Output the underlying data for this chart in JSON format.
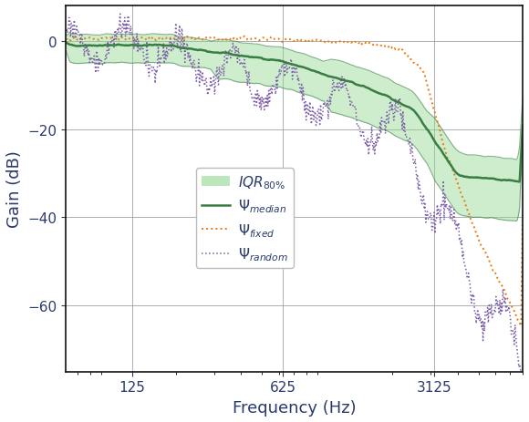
{
  "title": "",
  "xlabel": "Frequency (Hz)",
  "ylabel": "Gain (dB)",
  "xlim_log": [
    62,
    8000
  ],
  "ylim": [
    -75,
    8
  ],
  "xticks": [
    125,
    625,
    3125
  ],
  "yticks": [
    0,
    -20,
    -40,
    -60
  ],
  "grid": true,
  "color_median": "#3a7d44",
  "color_iqr": "#90d890",
  "color_fixed": "#e87a10",
  "color_random": "#7b5ea7",
  "figsize": [
    5.8,
    4.64
  ],
  "dpi": 100
}
